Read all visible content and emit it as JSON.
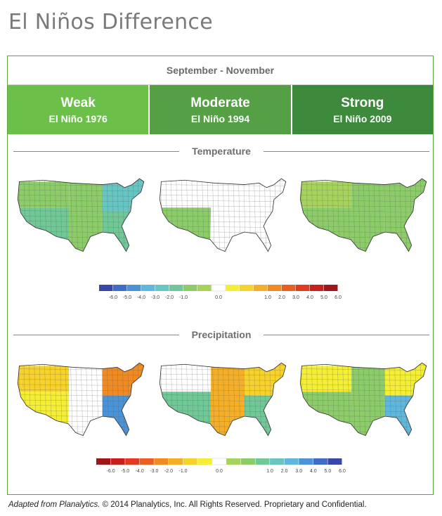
{
  "page": {
    "title": "El Niños Difference"
  },
  "season": "September - November",
  "categories": [
    {
      "name": "Weak",
      "event": "El Niño 1976",
      "color": "#6cc04a"
    },
    {
      "name": "Moderate",
      "event": "El Niño 1994",
      "color": "#55a045"
    },
    {
      "name": "Strong",
      "event": "El Niño 2009",
      "color": "#3e8a3c"
    }
  ],
  "sections": {
    "temperature": "Temperature",
    "precipitation": "Precipitation"
  },
  "chart_data": [
    {
      "type": "heatmap",
      "title": "Temperature",
      "panels": [
        "El Niño 1976",
        "El Niño 1994",
        "El Niño 2009"
      ],
      "colorbar": {
        "ticks": [
          "-6.0",
          "-5.0",
          "-4.0",
          "-3.0",
          "-2.0",
          "-1.0",
          "0.0",
          "1.0",
          "2.0",
          "3.0",
          "4.0",
          "5.0",
          "6.0"
        ],
        "colors": [
          "#3a47a8",
          "#3f6cc4",
          "#4a93d6",
          "#5fb7dd",
          "#67c6c2",
          "#70c896",
          "#8ccd6a",
          "#a6d35c",
          "#ffffff",
          "#f4ee34",
          "#f6d22a",
          "#f4af27",
          "#f08a23",
          "#ea5f21",
          "#e23920",
          "#c8201e",
          "#9c161a"
        ]
      },
      "fills": [
        {
          "nw": "#8ccd6a",
          "sw": "#70c896",
          "c": "#8ccd6a",
          "ne": "#67c6c2",
          "se": "#70c896"
        },
        {
          "nw": "#ffffff",
          "sw": "#8ccd6a",
          "c": "#ffffff",
          "ne": "#ffffff",
          "se": "#ffffff"
        },
        {
          "nw": "#a6d35c",
          "sw": "#8ccd6a",
          "c": "#8ccd6a",
          "ne": "#8ccd6a",
          "se": "#8ccd6a"
        }
      ]
    },
    {
      "type": "heatmap",
      "title": "Precipitation",
      "panels": [
        "El Niño 1976",
        "El Niño 1994",
        "El Niño 2009"
      ],
      "colorbar": {
        "ticks": [
          "-6.0",
          "-5.0",
          "-4.0",
          "-3.0",
          "-2.0",
          "-1.0",
          "0.0",
          "1.0",
          "2.0",
          "3.0",
          "4.0",
          "5.0",
          "6.0"
        ],
        "colors": [
          "#9c161a",
          "#c8201e",
          "#e23920",
          "#ea5f21",
          "#f08a23",
          "#f4af27",
          "#f6d22a",
          "#f4ee34",
          "#ffffff",
          "#a6d35c",
          "#8ccd6a",
          "#70c896",
          "#67c6c2",
          "#5fb7dd",
          "#4a93d6",
          "#3f6cc4",
          "#3a47a8"
        ]
      },
      "fills": [
        {
          "nw": "#f6d22a",
          "sw": "#f4ee34",
          "c": "#ffffff",
          "ne": "#f08a23",
          "se": "#4a93d6"
        },
        {
          "nw": "#ffffff",
          "sw": "#70c896",
          "c": "#f4af27",
          "ne": "#f6d22a",
          "se": "#70c896"
        },
        {
          "nw": "#f4ee34",
          "sw": "#8ccd6a",
          "c": "#8ccd6a",
          "ne": "#f4ee34",
          "se": "#5fb7dd"
        }
      ]
    }
  ],
  "footer": {
    "source": "Adapted from Planalytics.",
    "copyright": "© 2014 Planalytics, Inc. All Rights Reserved. Proprietary and Confidential."
  }
}
